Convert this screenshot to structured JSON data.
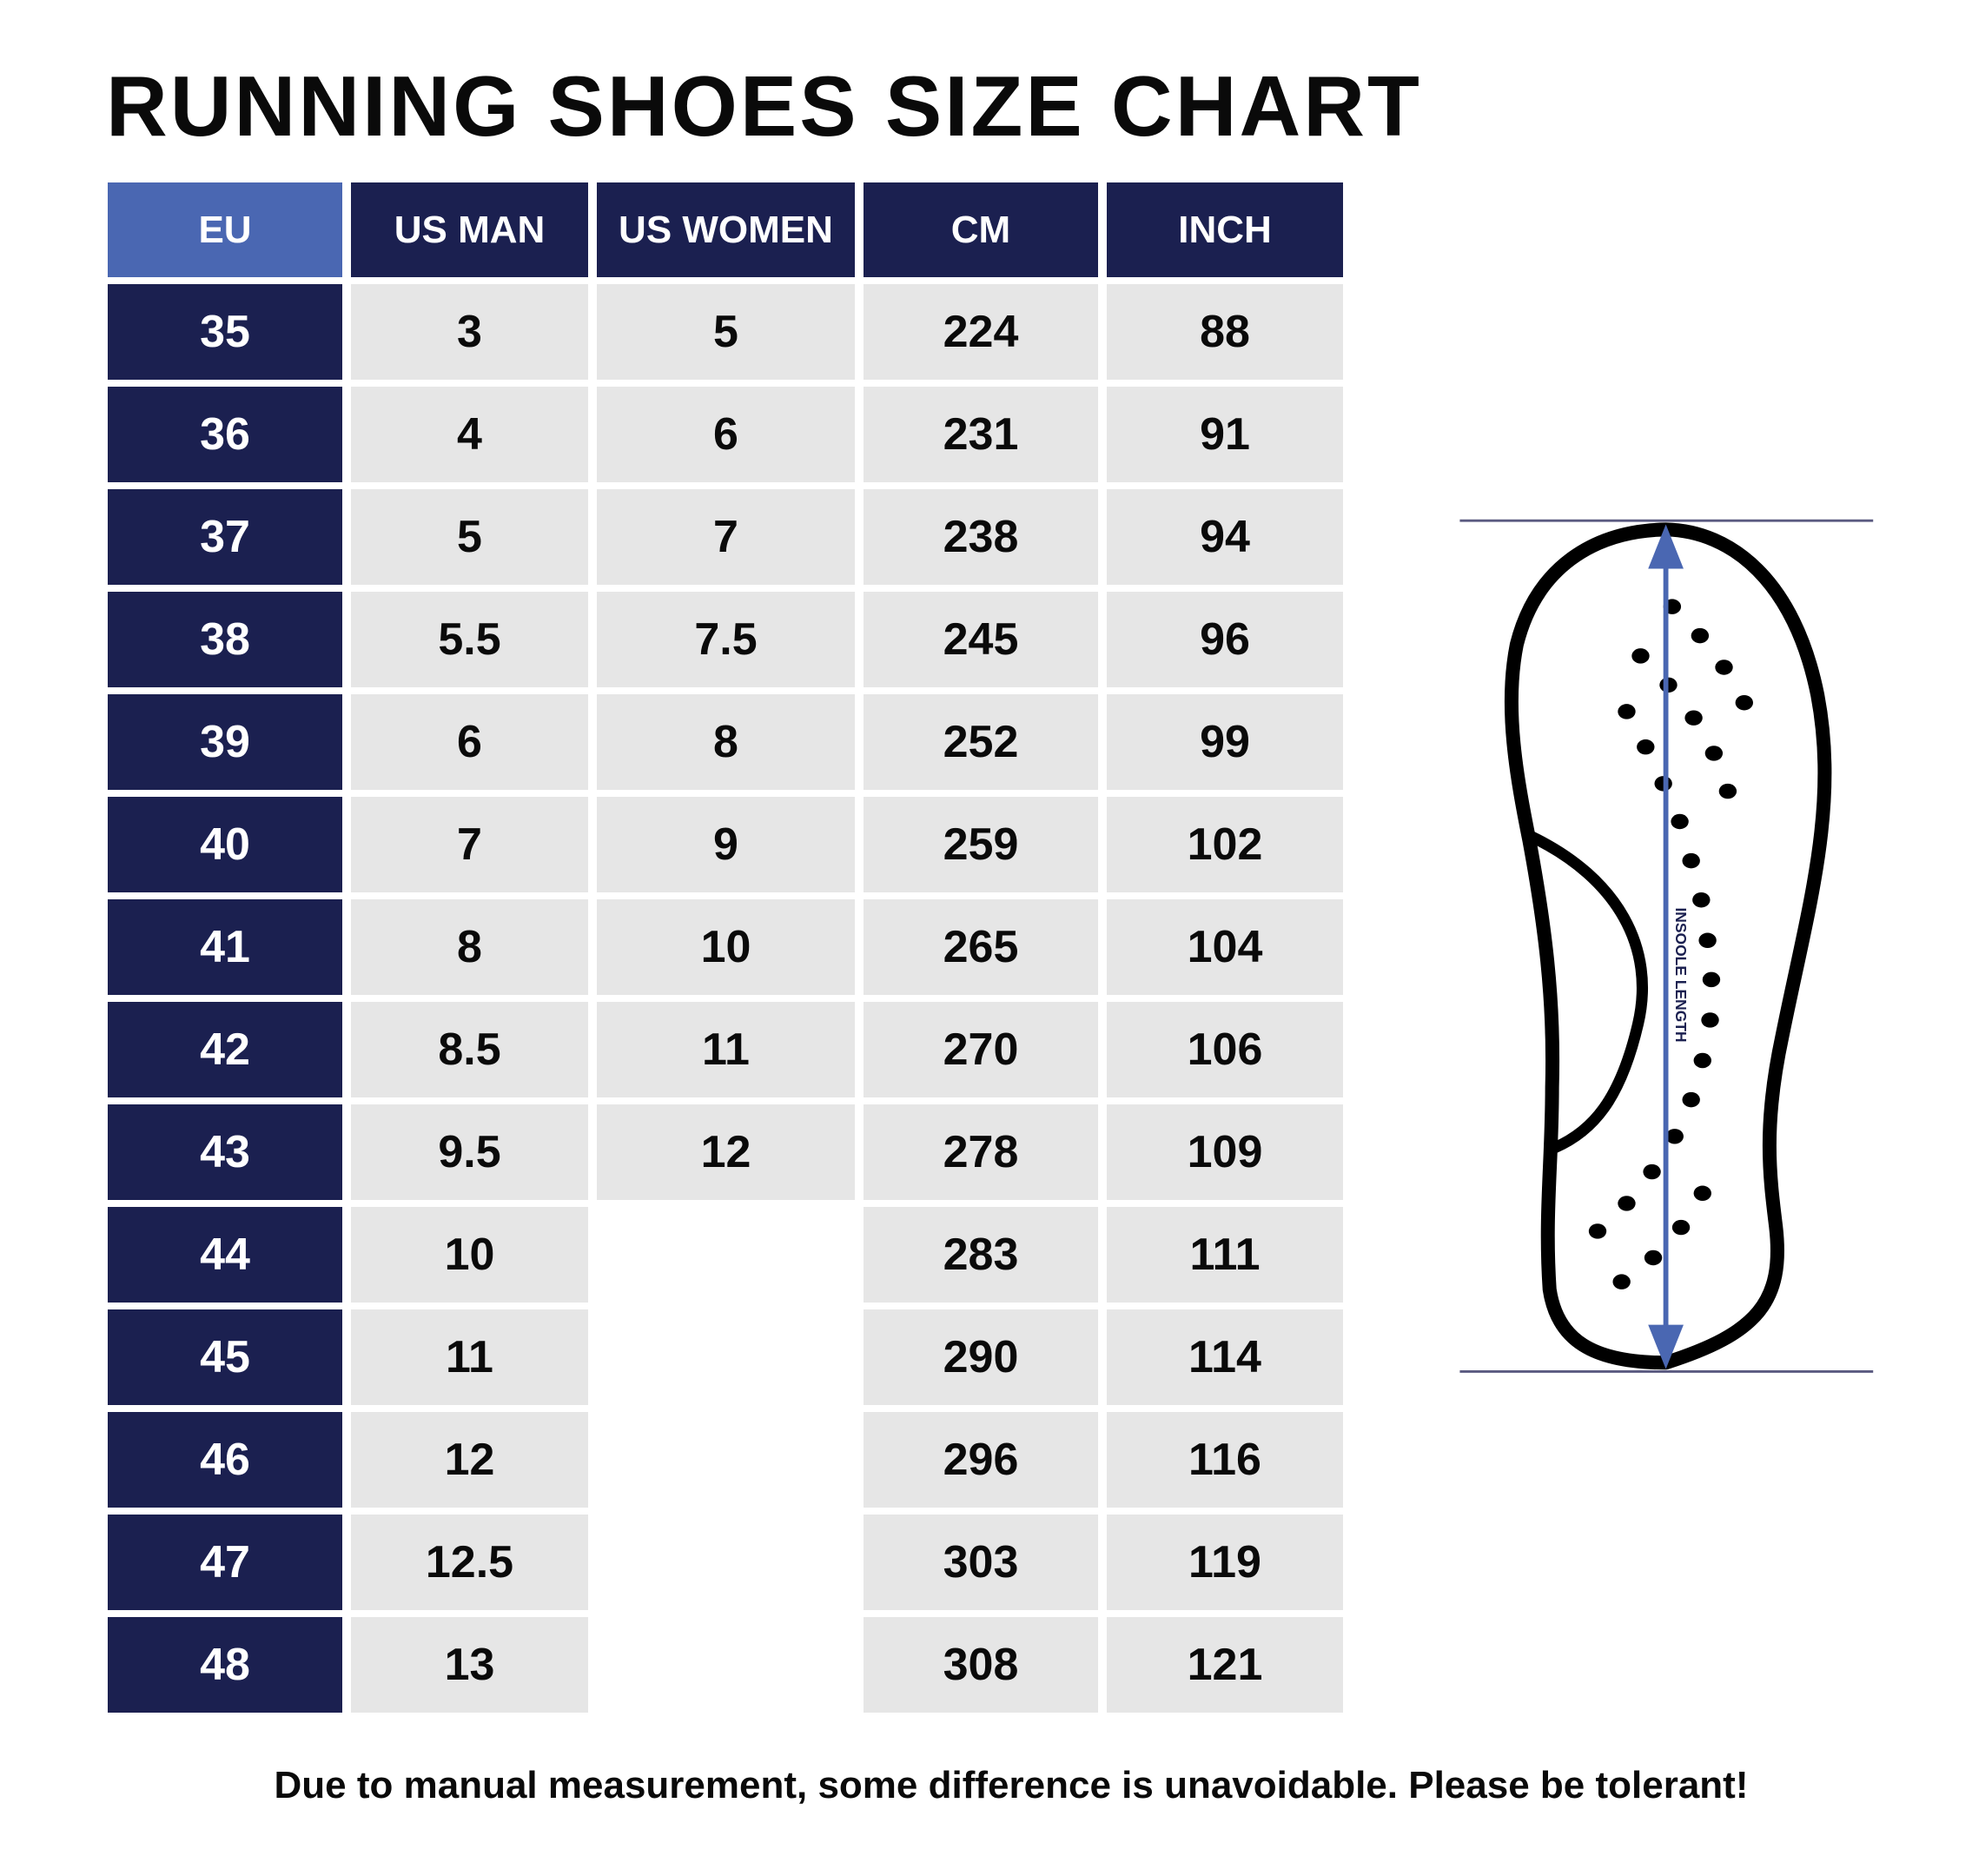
{
  "title": "RUNNING SHOES SIZE CHART",
  "colors": {
    "header_eu": "#4a67b2",
    "header_dark": "#1b2050",
    "cell_bg": "#e6e6e6",
    "arrow": "#4a67b2",
    "guide_line": "#5a5a80"
  },
  "table": {
    "headers": [
      "EU",
      "US MAN",
      "US WOMEN",
      "CM",
      "INCH"
    ],
    "rows": [
      [
        "35",
        "3",
        "5",
        "224",
        "88"
      ],
      [
        "36",
        "4",
        "6",
        "231",
        "91"
      ],
      [
        "37",
        "5",
        "7",
        "238",
        "94"
      ],
      [
        "38",
        "5.5",
        "7.5",
        "245",
        "96"
      ],
      [
        "39",
        "6",
        "8",
        "252",
        "99"
      ],
      [
        "40",
        "7",
        "9",
        "259",
        "102"
      ],
      [
        "41",
        "8",
        "10",
        "265",
        "104"
      ],
      [
        "42",
        "8.5",
        "11",
        "270",
        "106"
      ],
      [
        "43",
        "9.5",
        "12",
        "278",
        "109"
      ],
      [
        "44",
        "10",
        null,
        "283",
        "111"
      ],
      [
        "45",
        "11",
        null,
        "290",
        "114"
      ],
      [
        "46",
        "12",
        null,
        "296",
        "116"
      ],
      [
        "47",
        "12.5",
        null,
        "303",
        "119"
      ],
      [
        "48",
        "13",
        null,
        "308",
        "121"
      ]
    ]
  },
  "diagram": {
    "label": "INSOOLE LENGTH",
    "icon": "shoe-insole-icon"
  },
  "footer": "Due to manual measurement, some difference is unavoidable. Please be tolerant!"
}
